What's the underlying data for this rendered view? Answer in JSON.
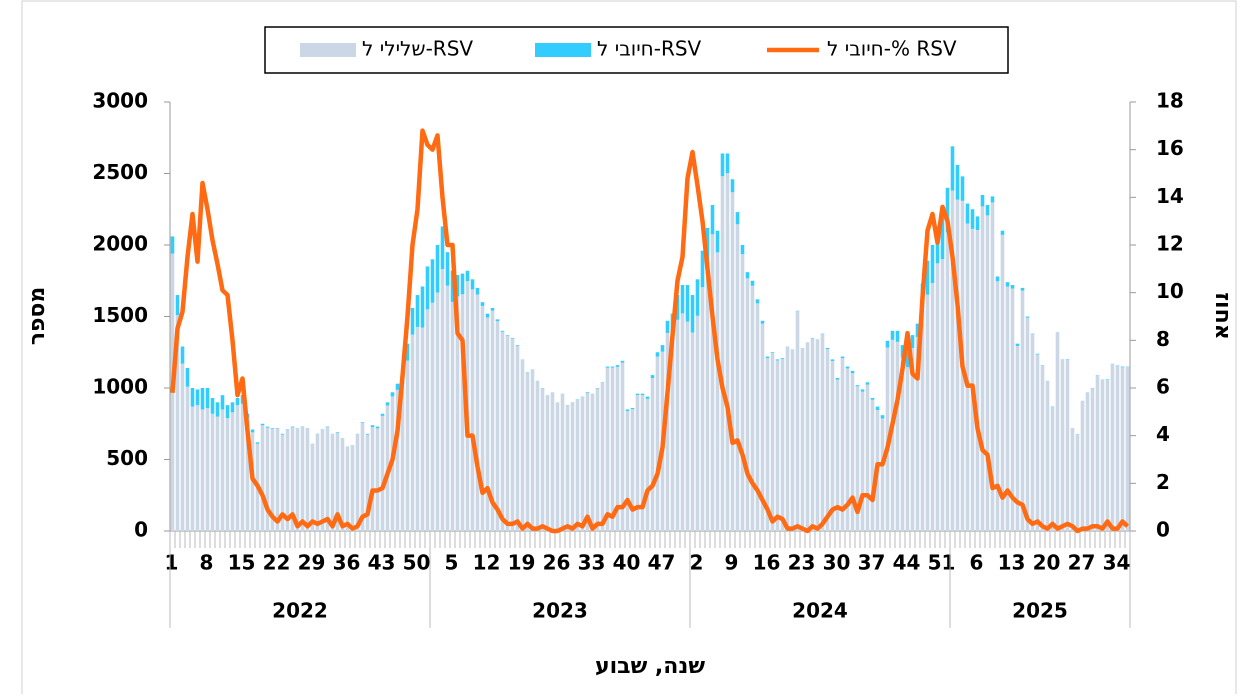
{
  "chart_data": {
    "type": "stacked_bar_line",
    "y_label": "מספר",
    "y2_label": "אחוז",
    "x_label": "שנה, שבוע",
    "ylim": [
      0,
      3000
    ],
    "yticks": [
      0,
      500,
      1000,
      1500,
      2000,
      2500,
      3000
    ],
    "y2lim": [
      0,
      18
    ],
    "y2ticks": [
      0,
      2,
      4,
      6,
      8,
      10,
      12,
      14,
      16,
      18
    ],
    "year_groups": [
      {
        "label": "2022",
        "weeks": 52
      },
      {
        "label": "2023",
        "weeks": 52
      },
      {
        "label": "2024",
        "weeks": 52
      },
      {
        "label": "2025",
        "weeks": 36
      }
    ],
    "categories": [
      "1",
      null,
      null,
      null,
      null,
      null,
      null,
      "8",
      null,
      null,
      null,
      null,
      null,
      null,
      "15",
      null,
      null,
      null,
      null,
      null,
      null,
      "22",
      null,
      null,
      null,
      null,
      null,
      null,
      "29",
      null,
      null,
      null,
      null,
      null,
      null,
      "36",
      null,
      null,
      null,
      null,
      null,
      null,
      "43",
      null,
      null,
      null,
      null,
      null,
      null,
      "50",
      null,
      null,
      null,
      null,
      null,
      null,
      "5",
      null,
      null,
      null,
      null,
      null,
      null,
      "12",
      null,
      null,
      null,
      null,
      null,
      null,
      "19",
      null,
      null,
      null,
      null,
      null,
      null,
      "26",
      null,
      null,
      null,
      null,
      null,
      null,
      "33",
      null,
      null,
      null,
      null,
      null,
      null,
      "40",
      null,
      null,
      null,
      null,
      null,
      null,
      "47",
      null,
      null,
      null,
      null,
      null,
      null,
      "2",
      null,
      null,
      null,
      null,
      null,
      null,
      "9",
      null,
      null,
      null,
      null,
      null,
      null,
      "16",
      null,
      null,
      null,
      null,
      null,
      null,
      "23",
      null,
      null,
      null,
      null,
      null,
      null,
      "30",
      null,
      null,
      null,
      null,
      null,
      null,
      "37",
      null,
      null,
      null,
      null,
      null,
      null,
      "44",
      null,
      null,
      null,
      null,
      null,
      null,
      "51",
      null,
      null,
      null,
      null,
      null,
      null,
      "6",
      null,
      null,
      null,
      null,
      null,
      null,
      "13",
      null,
      null,
      null,
      null,
      null,
      null,
      "20",
      null,
      null,
      null,
      null,
      null,
      null,
      "27",
      null,
      null,
      null,
      null,
      null,
      null,
      "34",
      null,
      null
    ],
    "series": [
      {
        "name": "שלילי ל-RSV",
        "type": "bar",
        "color": "#cbd7e4",
        "values": [
          1940,
          1510,
          1170,
          1010,
          870,
          880,
          850,
          860,
          820,
          800,
          850,
          790,
          830,
          880,
          890,
          790,
          690,
          610,
          740,
          723,
          716,
          717,
          675,
          706,
          725,
          719,
          727,
          719,
          608,
          678,
          707,
          726,
          679,
          685,
          649,
          588,
          599,
          679,
          755,
          675,
          727,
          718,
          805,
          878,
          941,
          987,
          1028,
          1192,
          1373,
          1427,
          1423,
          1550,
          1596,
          1668,
          1832,
          1716,
          1602,
          1641,
          1656,
          1747,
          1690,
          1654,
          1574,
          1493,
          1541,
          1467,
          1393,
          1366,
          1346,
          1295,
          1199,
          1107,
          1129,
          1049,
          998,
          949,
          970,
          900,
          959,
          878,
          899,
          917,
          938,
          964,
          959,
          997,
          1037,
          1142,
          1143,
          1148,
          1178,
          839,
          852,
          950,
          950,
          924,
          1069,
          1220,
          1254,
          1385,
          1395,
          1477,
          1522,
          1465,
          1388,
          1505,
          1705,
          1887,
          2075,
          1949,
          2482,
          2503,
          2369,
          2145,
          1936,
          1767,
          1715,
          1592,
          1451,
          1209,
          1245,
          1193,
          1204,
          1289,
          1269,
          1537,
          1279,
          1320,
          1347,
          1339,
          1376,
          1272,
          1189,
          1059,
          1209,
          1137,
          1104,
          1012,
          975,
          1024,
          918,
          846,
          787,
          1283,
          1337,
          1323,
          1212,
          1146,
          1280,
          1357,
          1560,
          1652,
          1734,
          1872,
          1901,
          2088,
          2381,
          2317,
          2309,
          2150,
          2113,
          2105,
          2270,
          2207,
          2298,
          1746,
          2071,
          1710,
          1696,
          1294,
          1681,
          1492,
          1376,
          1235,
          1158,
          1049,
          867,
          1389,
          1198,
          1196,
          719,
          680,
          909,
          969,
          998,
          1088,
          1059,
          1056,
          1169,
          1159,
          1145,
          1148
        ]
      },
      {
        "name": "חיובי ל-RSV",
        "type": "bar",
        "color": "#33ccff",
        "values": [
          120,
          140,
          120,
          130,
          130,
          110,
          150,
          140,
          110,
          100,
          100,
          90,
          70,
          50,
          60,
          30,
          20,
          10,
          10,
          7,
          4,
          3,
          5,
          4,
          5,
          1,
          3,
          1,
          2,
          2,
          3,
          4,
          1,
          5,
          1,
          2,
          1,
          1,
          5,
          5,
          13,
          12,
          15,
          22,
          29,
          43,
          72,
          118,
          187,
          223,
          287,
          300,
          304,
          332,
          298,
          234,
          218,
          149,
          144,
          73,
          70,
          46,
          26,
          27,
          19,
          13,
          7,
          4,
          4,
          5,
          1,
          3,
          1,
          1,
          2,
          1,
          0,
          0,
          1,
          2,
          1,
          3,
          2,
          6,
          1,
          3,
          3,
          8,
          7,
          12,
          12,
          11,
          8,
          10,
          10,
          16,
          21,
          30,
          46,
          85,
          125,
          173,
          198,
          255,
          262,
          255,
          255,
          233,
          205,
          151,
          158,
          137,
          91,
          85,
          64,
          43,
          35,
          28,
          19,
          11,
          5,
          7,
          6,
          1,
          1,
          3,
          1,
          0,
          3,
          1,
          4,
          8,
          11,
          11,
          11,
          13,
          16,
          8,
          15,
          16,
          12,
          24,
          23,
          47,
          63,
          77,
          88,
          104,
          90,
          93,
          170,
          238,
          266,
          258,
          299,
          312,
          309,
          243,
          171,
          140,
          137,
          95,
          80,
          73,
          42,
          34,
          29,
          30,
          24,
          16,
          19,
          8,
          4,
          5,
          2,
          1,
          3,
          1,
          2,
          4,
          1,
          0,
          1,
          1,
          2,
          2,
          1,
          4,
          1,
          1,
          5,
          2
        ]
      },
      {
        "name": "חיובי ל-% RSV",
        "type": "line",
        "axis": "y2",
        "color": "#ff6a13",
        "values": [
          5.8,
          8.5,
          9.2,
          11.5,
          13.3,
          11.3,
          14.6,
          13.5,
          12.2,
          11.2,
          10.1,
          9.9,
          8.0,
          5.7,
          6.4,
          4.2,
          2.2,
          1.9,
          1.5,
          0.9,
          0.6,
          0.4,
          0.7,
          0.5,
          0.7,
          0.2,
          0.4,
          0.2,
          0.4,
          0.3,
          0.4,
          0.5,
          0.2,
          0.7,
          0.2,
          0.3,
          0.1,
          0.2,
          0.6,
          0.7,
          1.7,
          1.7,
          1.8,
          2.4,
          3.0,
          4.2,
          6.5,
          9.0,
          12.0,
          13.5,
          16.8,
          16.2,
          16.0,
          16.6,
          14.0,
          12.0,
          12.0,
          8.3,
          8.0,
          4.0,
          4.0,
          2.7,
          1.6,
          1.8,
          1.2,
          0.9,
          0.5,
          0.3,
          0.3,
          0.4,
          0.1,
          0.3,
          0.1,
          0.1,
          0.2,
          0.1,
          0,
          0,
          0.1,
          0.2,
          0.1,
          0.3,
          0.2,
          0.6,
          0.1,
          0.3,
          0.3,
          0.7,
          0.6,
          1.0,
          1.0,
          1.3,
          0.9,
          1.0,
          1.0,
          1.7,
          1.9,
          2.4,
          3.5,
          5.8,
          8.2,
          10.5,
          11.5,
          14.8,
          15.9,
          14.5,
          13.0,
          11.0,
          9.0,
          7.2,
          6.0,
          5.2,
          3.7,
          3.8,
          3.2,
          2.4,
          2.0,
          1.7,
          1.3,
          0.9,
          0.4,
          0.6,
          0.5,
          0.1,
          0.1,
          0.2,
          0.1,
          0,
          0.2,
          0.1,
          0.3,
          0.6,
          0.9,
          1.0,
          0.9,
          1.1,
          1.4,
          0.8,
          1.5,
          1.5,
          1.3,
          2.8,
          2.8,
          3.5,
          4.5,
          5.5,
          6.8,
          8.3,
          6.6,
          6.4,
          9.8,
          12.6,
          13.3,
          12.1,
          13.6,
          13.0,
          11.5,
          9.5,
          6.9,
          6.1,
          6.1,
          4.3,
          3.4,
          3.2,
          1.8,
          1.9,
          1.4,
          1.7,
          1.4,
          1.2,
          1.1,
          0.5,
          0.3,
          0.4,
          0.2,
          0.1,
          0.3,
          0.1,
          0.2,
          0.3,
          0.2,
          0,
          0.1,
          0.1,
          0.2,
          0.2,
          0.1,
          0.4,
          0.1,
          0.1,
          0.4,
          0.2
        ]
      }
    ]
  }
}
